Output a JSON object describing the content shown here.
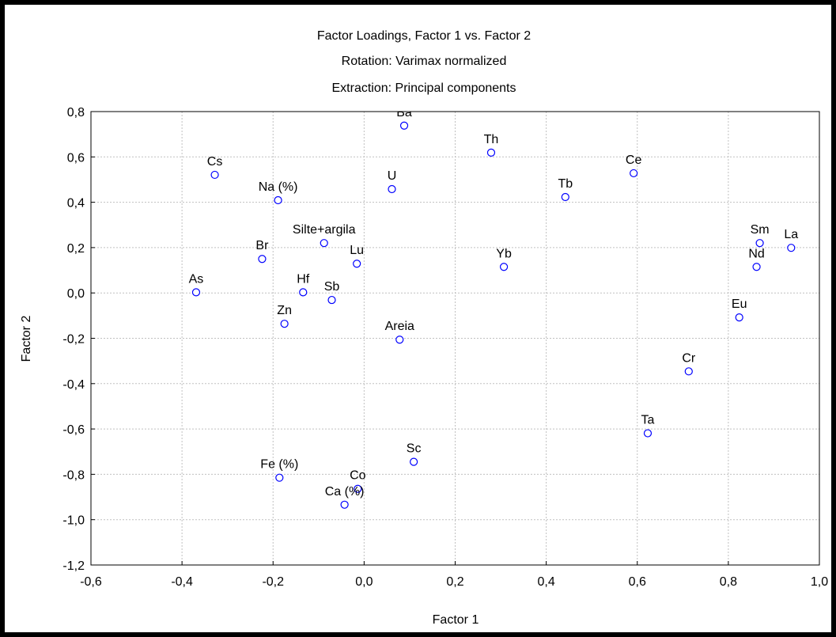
{
  "chart_data": {
    "type": "scatter",
    "title": "Factor Loadings, Factor 1 vs. Factor 2",
    "subtitle": [
      "Rotation: Varimax normalized",
      "Extraction: Principal components"
    ],
    "x_label": "Factor 1",
    "y_label": "Factor 2",
    "color": "#0000ff",
    "grid": true,
    "labels": [
      "Ba",
      "Th",
      "Cs",
      "Ce",
      "U",
      "Tb",
      "Na (%)",
      "Sm",
      "Silte+argila",
      "La",
      "Br",
      "Lu",
      "Yb",
      "Nd",
      "As",
      "Hf",
      "Sb",
      "Zn",
      "Eu",
      "Areia",
      "Cr",
      "Ta",
      "Sc",
      "Fe (%)",
      "Co",
      "Ca (%)"
    ],
    "x": [
      0.088,
      0.279,
      -0.328,
      0.592,
      0.061,
      0.442,
      -0.189,
      0.869,
      -0.088,
      0.938,
      -0.224,
      -0.016,
      0.307,
      0.862,
      -0.369,
      -0.134,
      -0.071,
      -0.175,
      0.824,
      0.078,
      0.713,
      0.623,
      0.109,
      -0.186,
      -0.014,
      -0.043
    ],
    "y": [
      0.738,
      0.619,
      0.521,
      0.528,
      0.458,
      0.423,
      0.409,
      0.22,
      0.22,
      0.199,
      0.15,
      0.129,
      0.115,
      0.115,
      0.003,
      0.003,
      -0.031,
      -0.136,
      -0.108,
      -0.206,
      -0.346,
      -0.619,
      -0.745,
      -0.815,
      -0.864,
      -0.934
    ],
    "xlim": [
      -0.6,
      1.0
    ],
    "ylim": [
      -1.2,
      0.8
    ],
    "xticks": [
      {
        "value": -0.6,
        "label": "-0,6"
      },
      {
        "value": -0.4,
        "label": "-0,4"
      },
      {
        "value": -0.2,
        "label": "-0,2"
      },
      {
        "value": 0,
        "label": "0,0"
      },
      {
        "value": 0.2,
        "label": "0,2"
      },
      {
        "value": 0.4,
        "label": "0,4"
      },
      {
        "value": 0.6,
        "label": "0,6"
      },
      {
        "value": 0.8,
        "label": "0,8"
      },
      {
        "value": 1.0,
        "label": "1,0"
      }
    ],
    "yticks": [
      {
        "value": -1.2,
        "label": "-1,2"
      },
      {
        "value": -1.0,
        "label": "-1,0"
      },
      {
        "value": -0.8,
        "label": "-0,8"
      },
      {
        "value": -0.6,
        "label": "-0,6"
      },
      {
        "value": -0.4,
        "label": "-0,4"
      },
      {
        "value": -0.2,
        "label": "-0,2"
      },
      {
        "value": 0,
        "label": "0,0"
      },
      {
        "value": 0.2,
        "label": "0,2"
      },
      {
        "value": 0.4,
        "label": "0,4"
      },
      {
        "value": 0.6,
        "label": "0,6"
      },
      {
        "value": 0.8,
        "label": "0,8"
      }
    ]
  }
}
